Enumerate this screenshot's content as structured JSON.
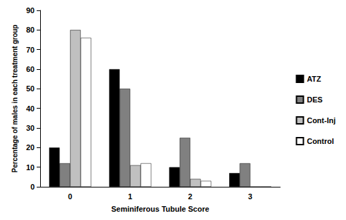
{
  "chart_data": {
    "type": "bar",
    "x_label": "Seminiferous Tubule Score",
    "y_label": "Percentage of males in each treatment group",
    "categories": [
      "0",
      "1",
      "2",
      "3"
    ],
    "series": [
      {
        "name": "ATZ",
        "color": "#000000",
        "values": [
          20,
          60,
          10,
          7
        ]
      },
      {
        "name": "DES",
        "color": "#808080",
        "values": [
          12,
          50,
          25,
          12
        ]
      },
      {
        "name": "Cont-Inj",
        "color": "#c0c0c0",
        "values": [
          80,
          11,
          4,
          0
        ]
      },
      {
        "name": "Control",
        "color": "#ffffff",
        "values": [
          76,
          12,
          3,
          0
        ]
      }
    ],
    "ylim": [
      0,
      90
    ],
    "yticks": [
      0,
      10,
      20,
      30,
      40,
      50,
      60,
      70,
      80,
      90
    ],
    "grid": false,
    "legend": "right"
  }
}
